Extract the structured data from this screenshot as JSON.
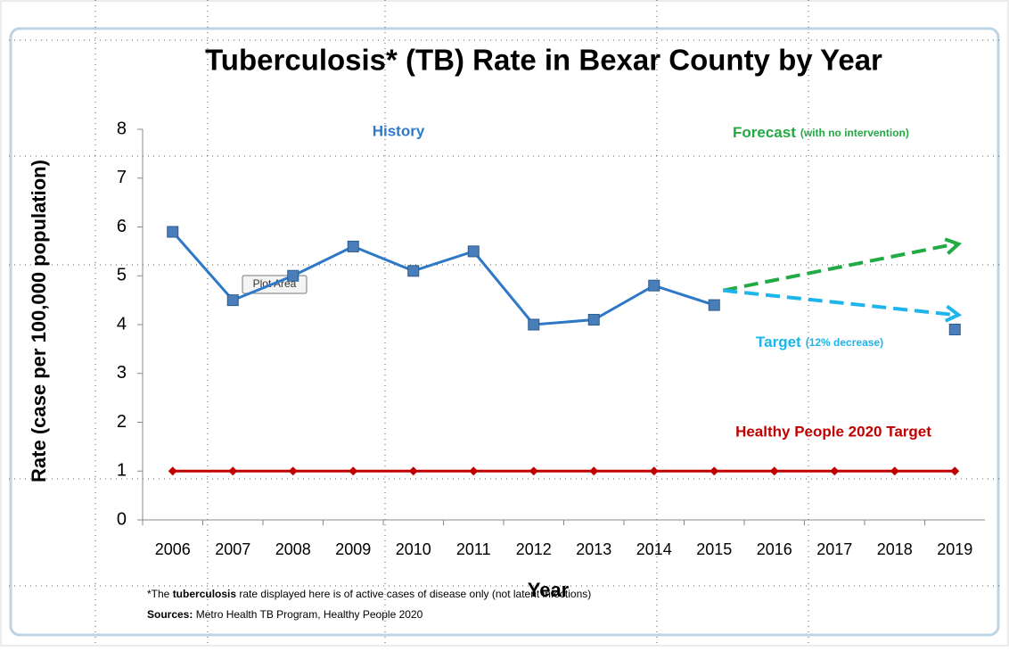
{
  "chart_data": {
    "type": "line",
    "title": "Tuberculosis* (TB) Rate in Bexar County by Year",
    "xlabel": "Year",
    "ylabel": "Rate (case  per 100,000 population)",
    "categories": [
      "2006",
      "2007",
      "2008",
      "2009",
      "2010",
      "2011",
      "2012",
      "2013",
      "2014",
      "2015",
      "2016",
      "2017",
      "2018",
      "2019"
    ],
    "ylim": [
      0,
      8
    ],
    "yticks": [
      0,
      1,
      2,
      3,
      4,
      5,
      6,
      7,
      8
    ],
    "series": [
      {
        "name": "History",
        "color": "#2e78c8",
        "marker": "square",
        "values": [
          5.9,
          4.5,
          5.0,
          5.6,
          5.1,
          5.5,
          4.0,
          4.1,
          4.8,
          4.4,
          null,
          null,
          null,
          3.9
        ]
      },
      {
        "name": "Healthy People 2020 Target",
        "color": "#c00000",
        "marker": "diamond",
        "values": [
          1,
          1,
          1,
          1,
          1,
          1,
          1,
          1,
          1,
          1,
          1,
          1,
          1,
          1
        ]
      }
    ],
    "arrows": [
      {
        "name": "Forecast",
        "note": "(with no intervention)",
        "color": "#22aa44",
        "from_category": "2015",
        "from_value": 4.7,
        "to_category": "2019",
        "to_value": 5.65
      },
      {
        "name": "Target",
        "note": "(12% decrease)",
        "color": "#1eb4ec",
        "from_category": "2015",
        "from_value": 4.7,
        "to_category": "2019",
        "to_value": 4.2
      }
    ],
    "tooltip": "Plot Area",
    "footnote": [
      "*The ",
      "tuberculosis",
      " rate displayed here is of active cases of disease only (not latent infections)"
    ],
    "sources": [
      "Sources:",
      " Metro Health TB Program, Healthy People 2020"
    ]
  }
}
